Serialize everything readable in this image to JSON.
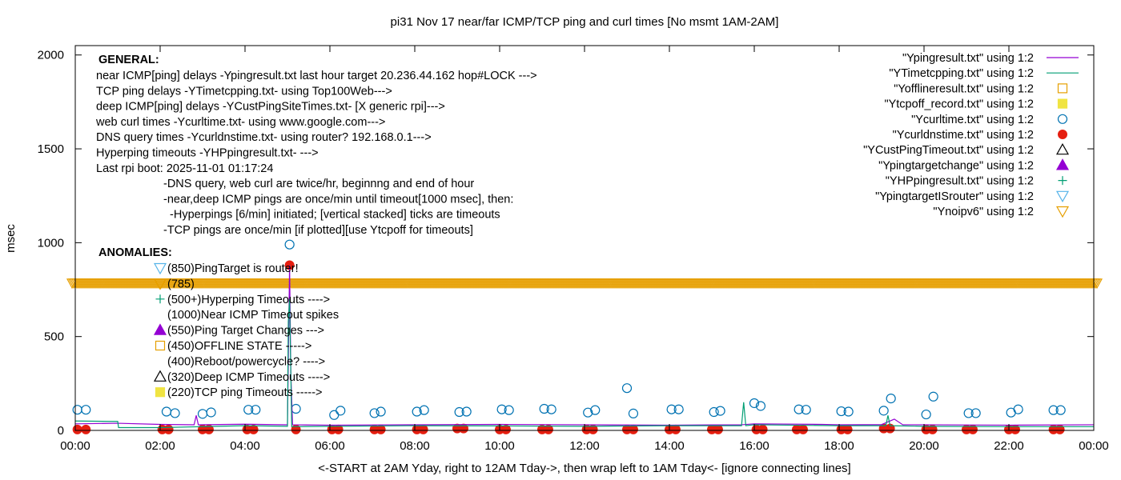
{
  "chart_data": {
    "type": "line",
    "title": "pi31 Nov 17  near/far ICMP/TCP ping and curl times [No msmt 1AM-2AM]",
    "xlabel": "<-START at 2AM Yday, right to 12AM Tday->, then wrap left to 1AM Tday<- [ignore connecting lines]",
    "ylabel": "msec",
    "x_ticks": [
      "00:00",
      "02:00",
      "04:00",
      "06:00",
      "08:00",
      "10:00",
      "12:00",
      "14:00",
      "16:00",
      "18:00",
      "20:00",
      "22:00",
      "00:00"
    ],
    "y_ticks": [
      0,
      500,
      1000,
      1500,
      2000
    ],
    "xlim": [
      0,
      24
    ],
    "ylim": [
      0,
      2050
    ],
    "grid": false,
    "legend_position": "top-right",
    "legend": [
      {
        "label": "\"Ypingresult.txt\" using 1:2",
        "style": "line",
        "color": "#9400d3"
      },
      {
        "label": "\"YTimetcpping.txt\" using 1:2",
        "style": "line",
        "color": "#009e73"
      },
      {
        "label": "\"Yofflineresult.txt\" using 1:2",
        "style": "open-square",
        "color": "#e69f00"
      },
      {
        "label": "\"Ytcpoff_record.txt\" using 1:2",
        "style": "filled-square",
        "color": "#f0e442"
      },
      {
        "label": "\"Ycurltime.txt\" using 1:2",
        "style": "open-circle",
        "color": "#0072b2"
      },
      {
        "label": "\"Ycurldnstime.txt\" using 1:2",
        "style": "filled-circle",
        "color": "#e51e10"
      },
      {
        "label": "\"YCustPingTimeout.txt\" using 1:2",
        "style": "open-triangle",
        "color": "#000000"
      },
      {
        "label": "\"Ypingtargetchange\" using 1:2",
        "style": "filled-triangle",
        "color": "#9400d3"
      },
      {
        "label": "\"YHPpingresult.txt\" using 1:2",
        "style": "plus",
        "color": "#009e73"
      },
      {
        "label": "\"YpingtargetISrouter\" using 1:2",
        "style": "open-down-triangle",
        "color": "#56b4e9"
      },
      {
        "label": "\"Ynoipv6\" using 1:2",
        "style": "open-down-triangle",
        "color": "#e69f00"
      }
    ],
    "annotations": {
      "general_header": "GENERAL:",
      "general_lines": [
        "near ICMP[ping] delays -Ypingresult.txt last hour target 20.236.44.162 hop#LOCK --->",
        "TCP ping delays -YTimetcpping.txt- using Top100Web--->",
        "deep ICMP[ping] delays -YCustPingSiteTimes.txt- [X generic rpi]--->",
        "web curl times -Ycurltime.txt- using www.google.com--->",
        "DNS query times -Ycurldnstime.txt- using router? 192.168.0.1--->",
        "Hyperping timeouts -YHPpingresult.txt- --->",
        "Last rpi boot: 2025-11-01 01:17:24"
      ],
      "note_lines": [
        "-DNS query, web curl are twice/hr, beginnng and end of hour",
        "-near,deep ICMP pings are once/min until timeout[1000 msec], then:",
        "  -Hyperpings [6/min] initiated; [vertical stacked] ticks are timeouts",
        "-TCP pings are once/min [if plotted][use Ytcpoff for timeouts]"
      ],
      "anomalies_header": "ANOMALIES:",
      "anomaly_lines": [
        "(850)PingTarget is router!",
        "(785)",
        "(500+)Hyperping Timeouts ---->",
        "(1000)Near ICMP Timeout spikes",
        "(550)Ping Target Changes --->",
        "(450)OFFLINE STATE ----->",
        "(400)Reboot/powercycle? ---->",
        "(320)Deep ICMP Timeouts ---->",
        "(220)TCP ping Timeouts ----->"
      ]
    },
    "series": [
      {
        "name": "\"Ycurltime.txt\" using 1:2",
        "style": "open-circle",
        "color": "#0072b2",
        "x": [
          0.05,
          0.25,
          2.15,
          2.35,
          3.0,
          3.2,
          4.08,
          4.25,
          5.05,
          5.2,
          6.1,
          6.25,
          7.05,
          7.2,
          8.05,
          8.22,
          9.05,
          9.22,
          10.05,
          10.22,
          11.05,
          11.22,
          12.08,
          12.25,
          13.0,
          13.15,
          14.05,
          14.22,
          15.05,
          15.2,
          16.0,
          16.15,
          17.05,
          17.22,
          18.05,
          18.22,
          19.05,
          19.22,
          20.05,
          20.22,
          21.05,
          21.22,
          22.05,
          22.22,
          23.05,
          23.22
        ],
        "y": [
          110,
          110,
          100,
          92,
          88,
          96,
          110,
          110,
          990,
          115,
          82,
          105,
          92,
          100,
          100,
          108,
          98,
          100,
          112,
          108,
          115,
          112,
          95,
          108,
          225,
          90,
          112,
          112,
          98,
          104,
          145,
          130,
          112,
          110,
          102,
          100,
          105,
          170,
          85,
          180,
          92,
          92,
          95,
          112,
          108,
          108
        ]
      },
      {
        "name": "\"Ycurldnstime.txt\" using 1:2",
        "style": "filled-circle",
        "color": "#e51e10",
        "x": [
          0.05,
          0.25,
          2.05,
          2.2,
          3.0,
          3.15,
          4.05,
          4.2,
          5.05,
          5.2,
          6.05,
          6.2,
          7.05,
          7.2,
          8.05,
          8.2,
          9.0,
          9.15,
          10.0,
          10.15,
          11.0,
          11.15,
          12.05,
          12.2,
          13.0,
          13.15,
          14.0,
          14.15,
          15.0,
          15.15,
          16.05,
          16.2,
          17.0,
          17.15,
          18.05,
          18.2,
          19.05,
          19.2,
          20.05,
          20.2,
          21.0,
          21.15,
          22.0,
          22.15,
          23.05,
          23.2
        ],
        "y": [
          5,
          5,
          5,
          5,
          5,
          5,
          5,
          5,
          880,
          5,
          5,
          5,
          5,
          5,
          5,
          5,
          10,
          10,
          5,
          5,
          5,
          5,
          5,
          5,
          5,
          5,
          5,
          5,
          5,
          5,
          5,
          5,
          5,
          5,
          5,
          5,
          10,
          10,
          5,
          5,
          5,
          5,
          5,
          5,
          5,
          5
        ]
      },
      {
        "name": "\"Ynoipv6\" using 1:2",
        "style": "open-down-triangle",
        "color": "#e69f00",
        "x_range": [
          0,
          24
        ],
        "y": 785
      },
      {
        "name": "\"Ypingresult.txt\" using 1:2",
        "style": "line",
        "color": "#9400d3",
        "x": [
          0,
          1,
          2,
          2.8,
          2.85,
          2.9,
          4,
          5,
          5.05,
          5.08,
          5.12,
          6,
          8,
          10,
          12,
          14,
          15.7,
          16,
          17.6,
          18,
          19,
          19.3,
          19.5,
          20,
          22,
          24
        ],
        "y": [
          35,
          38,
          32,
          30,
          80,
          30,
          33,
          30,
          880,
          300,
          30,
          28,
          30,
          32,
          30,
          28,
          30,
          35,
          32,
          30,
          31,
          60,
          30,
          30,
          28,
          30
        ]
      },
      {
        "name": "\"YTimetcpping.txt\" using 1:2",
        "style": "line",
        "color": "#009e73",
        "x": [
          0,
          0.8,
          1.0,
          1.02,
          2,
          3,
          4,
          5,
          5.02,
          5.05,
          5.1,
          6,
          8,
          10,
          12,
          14,
          15.7,
          15.75,
          15.8,
          16,
          18,
          19.1,
          19.15,
          19.2,
          20,
          22,
          24
        ],
        "y": [
          50,
          48,
          48,
          15,
          15,
          20,
          25,
          22,
          580,
          700,
          20,
          22,
          25,
          24,
          22,
          25,
          25,
          150,
          25,
          30,
          25,
          25,
          80,
          25,
          22,
          20,
          20
        ]
      }
    ]
  }
}
